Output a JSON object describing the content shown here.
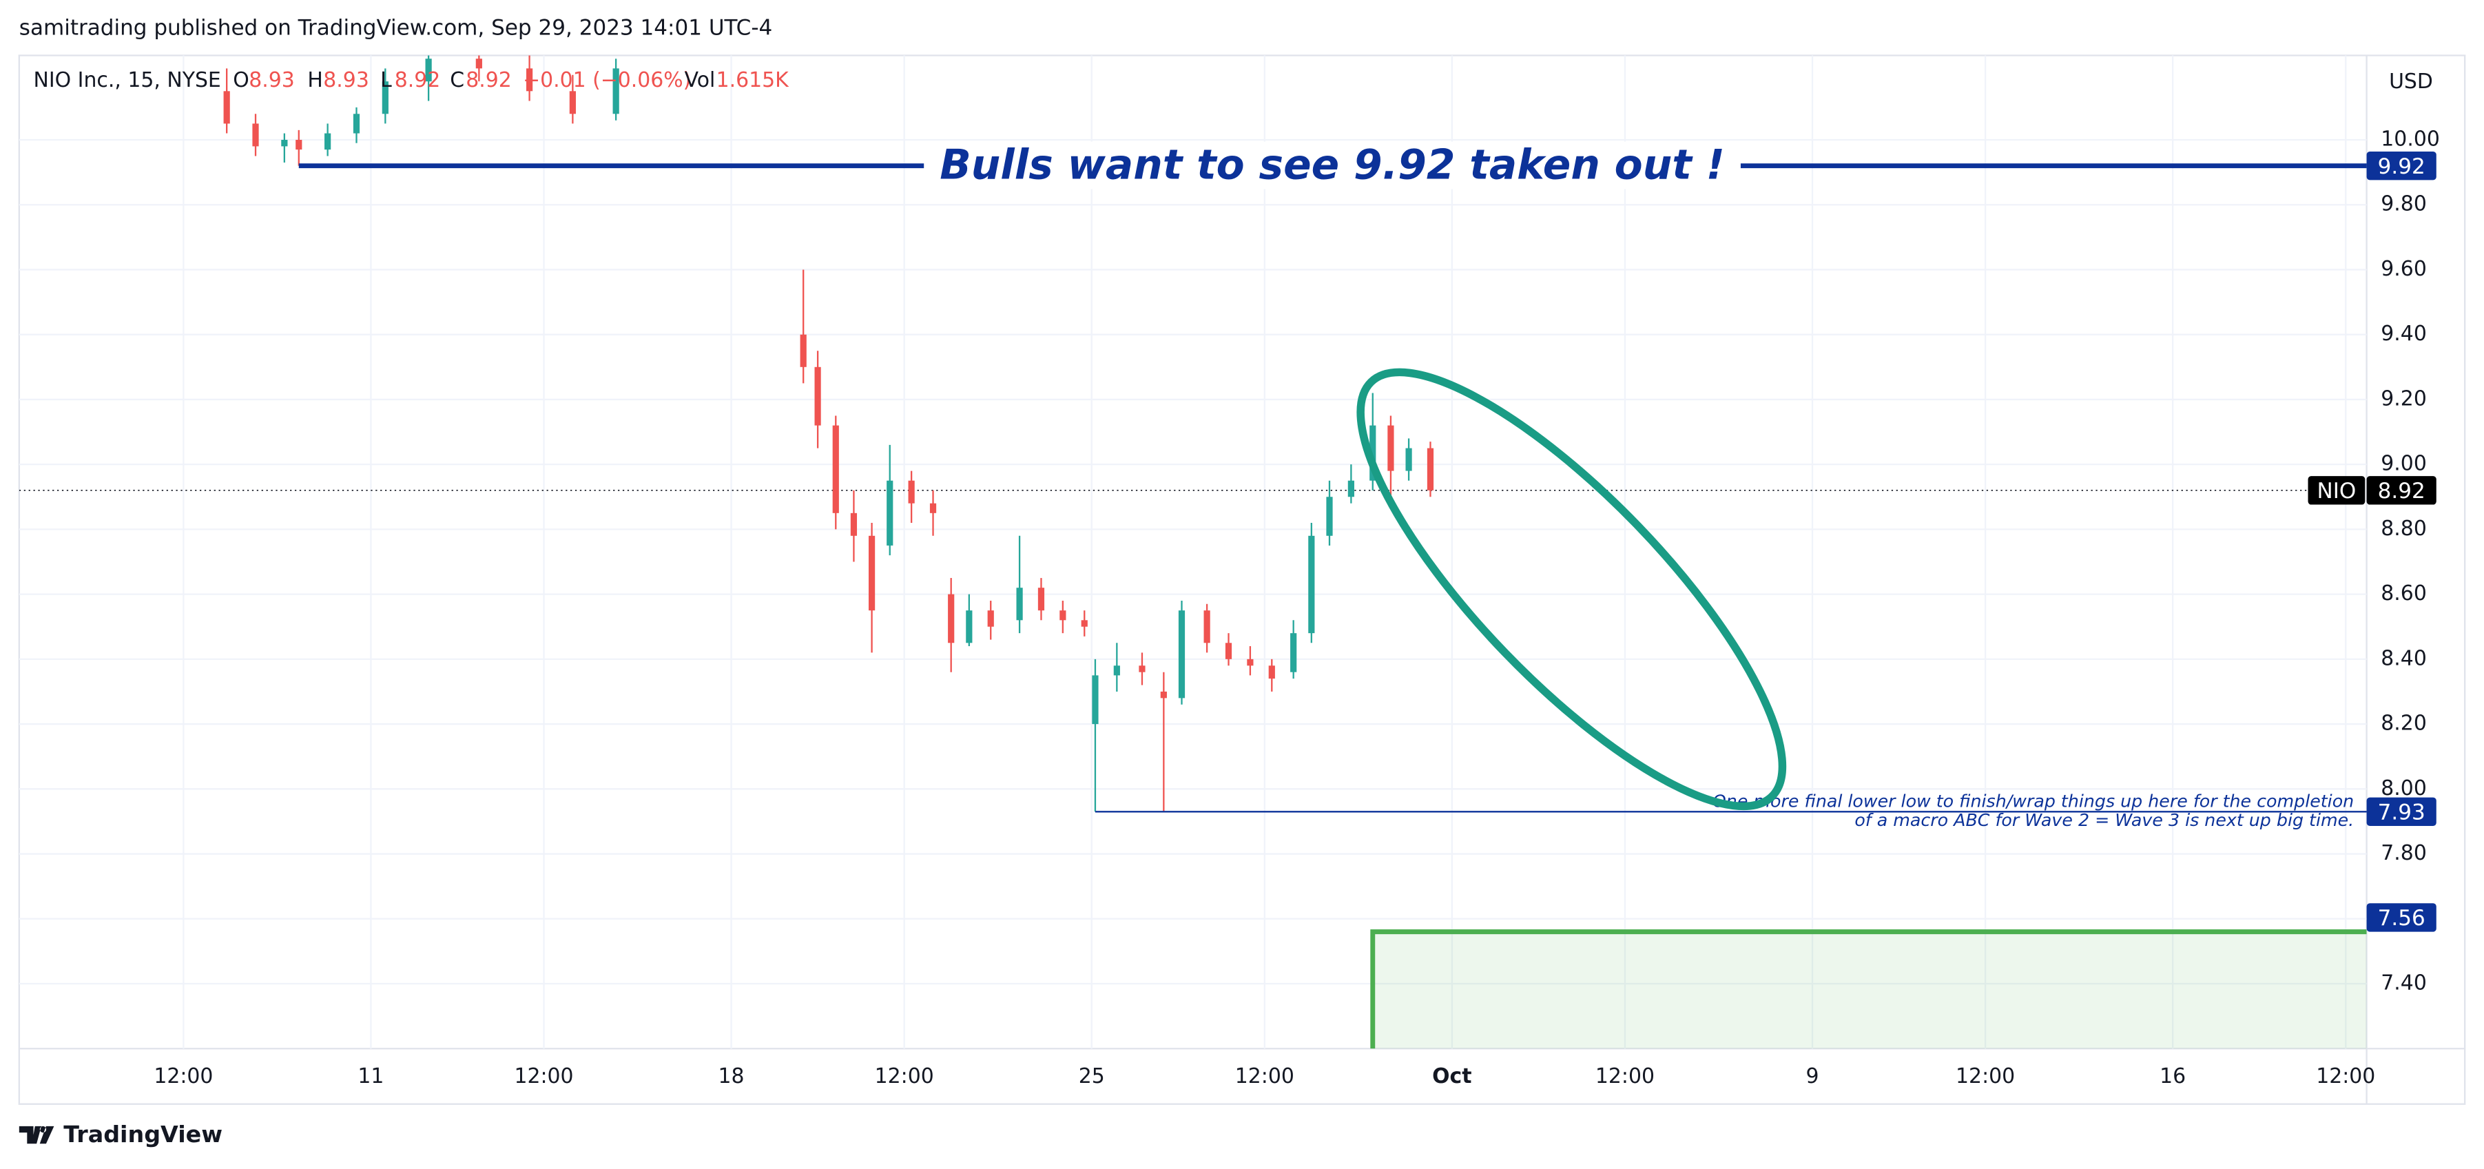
{
  "header": {
    "published": "samitrading published on TradingView.com, Sep 29, 2023 14:01 UTC-4"
  },
  "legend": {
    "symbol": "NIO Inc., 15, NYSE",
    "o_label": "O",
    "open": 8.93,
    "h_label": "H",
    "high": 8.93,
    "l_label": "L",
    "low": 8.92,
    "c_label": "C",
    "close": 8.92,
    "change": "−0.01 (−0.06%)",
    "vol_label": "Vol",
    "volume": "1.615K"
  },
  "footer": {
    "brand": "TradingView"
  },
  "chart_data": {
    "type": "candlestick",
    "currency": "USD",
    "up_color": "#26a69a",
    "down_color": "#ef5350",
    "x": [
      -2.0,
      -1.6,
      -1.2,
      -1.0,
      -0.6,
      -0.2,
      0.2,
      0.8,
      1.5,
      2.2,
      2.8,
      3.4,
      6.0,
      6.2,
      6.45,
      6.7,
      6.95,
      7.2,
      7.5,
      7.8,
      8.05,
      8.3,
      8.6,
      9.0,
      9.3,
      9.6,
      9.9,
      10.05,
      10.35,
      10.7,
      11.0,
      11.25,
      11.6,
      11.9,
      12.2,
      12.5,
      12.8,
      13.05,
      13.3,
      13.6,
      13.9,
      14.15,
      14.4,
      14.7
    ],
    "open": [
      10.15,
      10.05,
      9.98,
      10.0,
      9.97,
      10.02,
      10.08,
      10.18,
      10.25,
      10.22,
      10.15,
      10.08,
      9.4,
      9.3,
      9.12,
      8.85,
      8.78,
      8.75,
      8.95,
      8.88,
      8.6,
      8.45,
      8.55,
      8.52,
      8.62,
      8.55,
      8.52,
      8.2,
      8.35,
      8.38,
      8.3,
      8.28,
      8.55,
      8.45,
      8.4,
      8.38,
      8.36,
      8.48,
      8.78,
      8.9,
      8.95,
      9.12,
      8.98,
      9.05
    ],
    "high": [
      10.22,
      10.08,
      10.02,
      10.03,
      10.05,
      10.1,
      10.22,
      10.3,
      10.32,
      10.28,
      10.2,
      10.25,
      9.6,
      9.35,
      9.15,
      8.92,
      8.82,
      9.06,
      8.98,
      8.92,
      8.65,
      8.6,
      8.58,
      8.78,
      8.65,
      8.58,
      8.55,
      8.4,
      8.45,
      8.42,
      8.36,
      8.58,
      8.57,
      8.48,
      8.44,
      8.4,
      8.52,
      8.82,
      8.95,
      9.0,
      9.22,
      9.15,
      9.08,
      9.07
    ],
    "low": [
      10.02,
      9.95,
      9.93,
      9.92,
      9.95,
      9.99,
      10.05,
      10.12,
      10.18,
      10.12,
      10.05,
      10.06,
      9.25,
      9.05,
      8.8,
      8.7,
      8.42,
      8.72,
      8.82,
      8.78,
      8.36,
      8.44,
      8.46,
      8.48,
      8.52,
      8.48,
      8.47,
      7.93,
      8.3,
      8.32,
      7.93,
      8.26,
      8.42,
      8.38,
      8.35,
      8.3,
      8.34,
      8.45,
      8.75,
      8.88,
      8.92,
      8.9,
      8.95,
      8.9
    ],
    "close": [
      10.05,
      9.98,
      10.0,
      9.97,
      10.02,
      10.08,
      10.18,
      10.25,
      10.22,
      10.15,
      10.08,
      10.22,
      9.3,
      9.12,
      8.85,
      8.78,
      8.55,
      8.95,
      8.88,
      8.85,
      8.45,
      8.55,
      8.5,
      8.62,
      8.55,
      8.52,
      8.5,
      8.35,
      8.38,
      8.36,
      8.28,
      8.55,
      8.45,
      8.4,
      8.38,
      8.34,
      8.48,
      8.78,
      8.9,
      8.95,
      9.12,
      8.98,
      9.05,
      8.92
    ],
    "xlim": [
      -4.88,
      27.69
    ],
    "xticks": [
      {
        "value": -2.6,
        "label": "12:00"
      },
      {
        "value": 0,
        "label": "11"
      },
      {
        "value": 2.4,
        "label": "12:00"
      },
      {
        "value": 5,
        "label": "18"
      },
      {
        "value": 7.4,
        "label": "12:00"
      },
      {
        "value": 10,
        "label": "25"
      },
      {
        "value": 12.4,
        "label": "12:00"
      },
      {
        "value": 15,
        "label": "Oct"
      },
      {
        "value": 17.4,
        "label": "12:00"
      },
      {
        "value": 20,
        "label": "9"
      },
      {
        "value": 22.4,
        "label": "12:00"
      },
      {
        "value": 25,
        "label": "16"
      },
      {
        "value": 27.4,
        "label": "12:00"
      }
    ],
    "ylim": [
      7.2,
      10.26
    ],
    "yticks": [
      {
        "value": 7.4,
        "label": "7.40"
      },
      {
        "value": 7.6,
        "label": "7.60"
      },
      {
        "value": 7.8,
        "label": "7.80"
      },
      {
        "value": 8.0,
        "label": "8.00"
      },
      {
        "value": 8.2,
        "label": "8.20"
      },
      {
        "value": 8.4,
        "label": "8.40"
      },
      {
        "value": 8.6,
        "label": "8.60"
      },
      {
        "value": 8.8,
        "label": "8.80"
      },
      {
        "value": 9.0,
        "label": "9.00"
      },
      {
        "value": 9.2,
        "label": "9.20"
      },
      {
        "value": 9.4,
        "label": "9.40"
      },
      {
        "value": 9.6,
        "label": "9.60"
      },
      {
        "value": 9.8,
        "label": "9.80"
      },
      {
        "value": 10.0,
        "label": "10.00"
      }
    ],
    "grid": true,
    "price_line": {
      "name": "NIO",
      "value": 8.92
    },
    "resistance": {
      "text": "Bulls want to see 9.92 taken out !",
      "value": 9.92,
      "x_start": -1.0,
      "color": "#0c3299"
    },
    "support": {
      "lines": [
        "One more final lower low to finish/wrap things up here for the completion",
        "of a macro ABC for Wave 2 = Wave 3 is next up big time."
      ],
      "value": 7.93,
      "x_start": 10.05,
      "color": "#0c3299"
    },
    "zone": {
      "value": 7.56,
      "x_start": 13.9,
      "color": "#4caf50",
      "label_color": "#0c3299"
    }
  }
}
